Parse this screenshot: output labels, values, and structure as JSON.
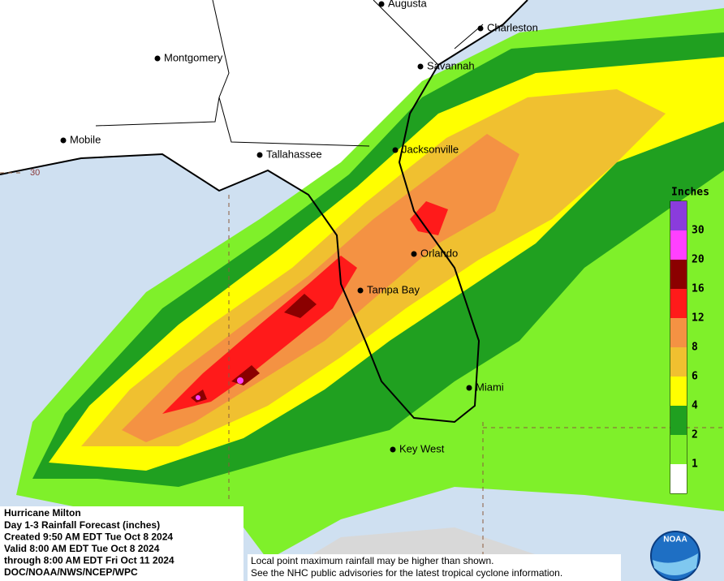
{
  "cities": [
    "Augusta",
    "Charleston",
    "Montgomery",
    "Savannah",
    "Mobile",
    "Tallahassee",
    "Jacksonville",
    "Orlando",
    "Tampa Bay",
    "Miami",
    "Key West"
  ],
  "lat_label": "30",
  "legend": {
    "title": "Inches",
    "ticks": [
      1,
      2,
      4,
      6,
      8,
      12,
      16,
      20,
      30
    ],
    "colors": [
      "#ffffff",
      "#7ff02a",
      "#20a020",
      "#ffff00",
      "#f0c030",
      "#f49243",
      "#ff1a1a",
      "#8b0000",
      "#ff40ff",
      "#8a3cdc"
    ]
  },
  "info": [
    "Hurricane Milton",
    "Day 1-3 Rainfall Forecast (inches)",
    "Created 9:50 AM EDT Tue Oct 8 2024",
    "Valid 8:00 AM EDT Tue Oct 8 2024",
    "through 8:00 AM EDT Fri Oct 11 2024",
    "DOC/NOAA/NWS/NCEP/WPC"
  ],
  "disclaimer": [
    "Local point maximum rainfall may be higher than shown.",
    "See the NHC public advisories for the latest tropical cyclone information."
  ],
  "logo": "NOAA"
}
